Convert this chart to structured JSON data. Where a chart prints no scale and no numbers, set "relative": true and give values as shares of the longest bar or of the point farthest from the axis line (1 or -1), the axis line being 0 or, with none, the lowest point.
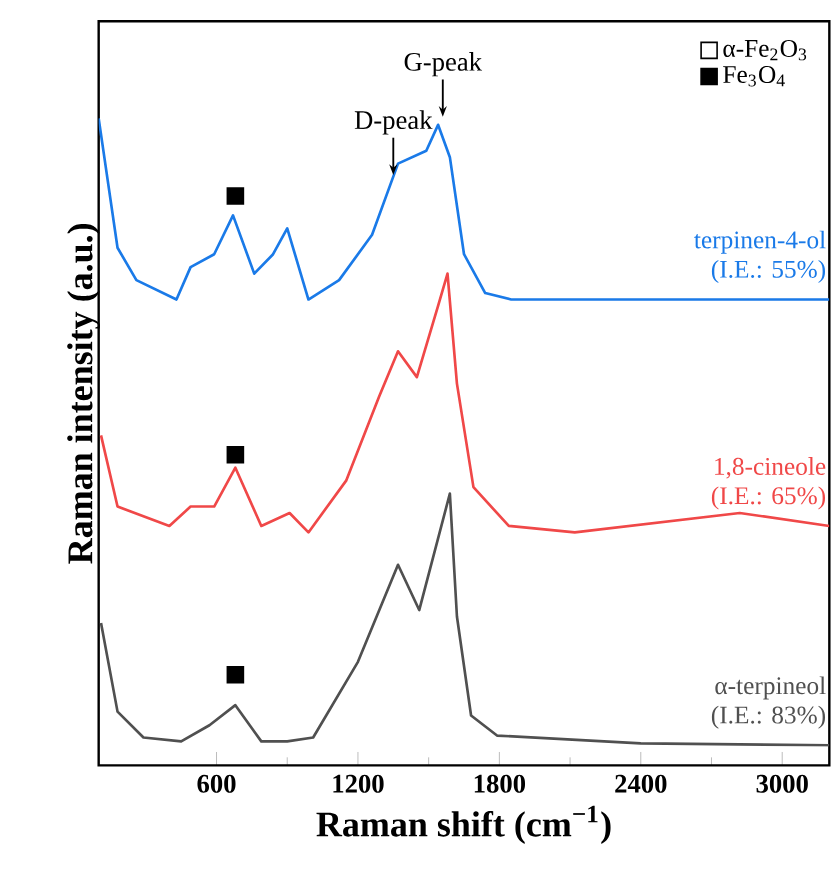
{
  "chart_data": {
    "type": "line",
    "xlabel": "Raman shift (cm$^{−1}$)",
    "ylabel": "Raman intensity (a.u.)",
    "relative": true,
    "xlim": [
      100,
      3200
    ],
    "xticks": [
      600,
      1200,
      1800,
      2400,
      3000
    ],
    "legend": "top right",
    "marker": "none",
    "line_style": "solid",
    "series": [
      {
        "name": "terpinen-4-ol",
        "color": "#1a7ae8",
        "x": [
          100,
          180,
          260,
          430,
          490,
          590,
          670,
          760,
          840,
          900,
          990,
          1120,
          1260,
          1370,
          1490,
          1540,
          1590,
          1650,
          1740,
          1850,
          2200,
          2600,
          2900,
          3200
        ],
        "values": [
          1.0,
          0.8,
          0.75,
          0.72,
          0.77,
          0.79,
          0.85,
          0.76,
          0.79,
          0.83,
          0.72,
          0.75,
          0.82,
          0.93,
          0.95,
          0.99,
          0.94,
          0.79,
          0.73,
          0.72,
          0.72,
          0.72,
          0.72,
          0.72
        ]
      },
      {
        "name": "1,8-cineole",
        "color": "#f04848",
        "x": [
          110,
          180,
          400,
          490,
          590,
          680,
          790,
          910,
          990,
          1150,
          1290,
          1370,
          1450,
          1540,
          1580,
          1620,
          1690,
          1840,
          2120,
          2820,
          3200
        ],
        "values": [
          0.51,
          0.4,
          0.37,
          0.4,
          0.4,
          0.46,
          0.37,
          0.39,
          0.36,
          0.44,
          0.57,
          0.64,
          0.6,
          0.71,
          0.76,
          0.59,
          0.43,
          0.37,
          0.36,
          0.39,
          0.37
        ]
      },
      {
        "name": "α-terpineol",
        "color": "#505050",
        "x": [
          110,
          180,
          290,
          450,
          570,
          680,
          790,
          900,
          1010,
          1200,
          1370,
          1460,
          1590,
          1620,
          1680,
          1790,
          2400,
          3200
        ],
        "values": [
          0.22,
          0.083,
          0.043,
          0.037,
          0.062,
          0.093,
          0.037,
          0.037,
          0.043,
          0.16,
          0.31,
          0.24,
          0.42,
          0.23,
          0.077,
          0.046,
          0.034,
          0.031
        ]
      },
      {
        "name": "α-Fe$_{2}$O$_{3}$",
        "type": "scatter",
        "marker": "square",
        "color": "#ffffff"
      },
      {
        "name": "Fe$_{3}$O$_{4}$",
        "type": "scatter",
        "marker": "square",
        "color": "#000000",
        "x": [
          680,
          680,
          680
        ],
        "values": [
          0.88,
          0.48,
          0.14
        ]
      }
    ],
    "annotations": [
      "(I.E.: 55%)",
      "(I.E.: 65%)",
      "(I.E.: 83%)",
      {
        "text": "D-peak",
        "x": 1350,
        "y": 0.9
      },
      {
        "text": "G-peak",
        "x": 1560,
        "y": 0.99
      }
    ]
  }
}
